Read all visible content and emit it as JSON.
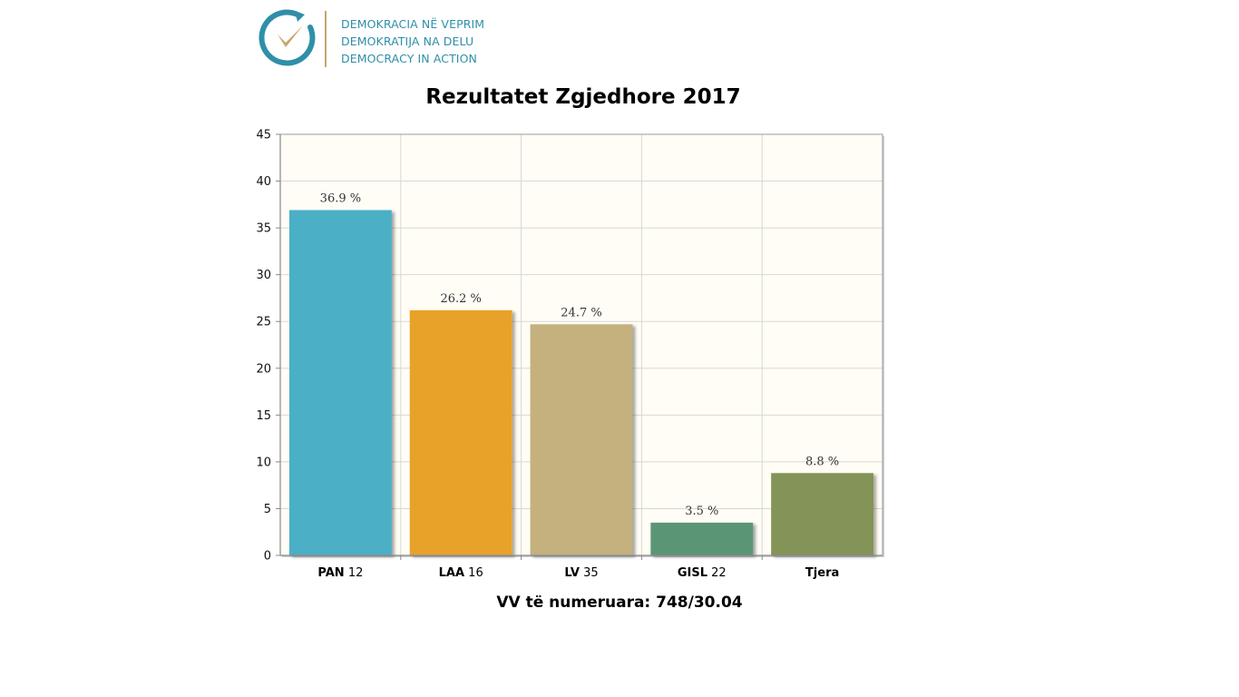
{
  "logo": {
    "lines": [
      "DEMOKRACIA NË VEPRIM",
      "DEMOKRATIJA NA DELU",
      "DEMOCRACY IN ACTION"
    ],
    "icon": "circular-arrow-checkmark-icon",
    "colors": {
      "ring": "#2f8fa8",
      "check": "#c9a46a"
    }
  },
  "chart_data": {
    "type": "bar",
    "title": "Rezultatet Zgjedhore 2017",
    "footer": "VV të numeruara: 748/30.04",
    "categories": [
      {
        "name": "PAN",
        "number": "12"
      },
      {
        "name": "LAA",
        "number": "16"
      },
      {
        "name": "LV",
        "number": "35"
      },
      {
        "name": "GISL",
        "number": "22"
      },
      {
        "name": "Tjera",
        "number": ""
      }
    ],
    "values": [
      36.9,
      26.2,
      24.7,
      3.5,
      8.8
    ],
    "value_labels": [
      "36.9 %",
      "26.2 %",
      "24.7 %",
      "3.5 %",
      "8.8 %"
    ],
    "colors": [
      "#4bafc6",
      "#e8a22b",
      "#c4b17e",
      "#5a9676",
      "#849458"
    ],
    "ylim": [
      0,
      45
    ],
    "yticks": [
      0,
      5,
      10,
      15,
      20,
      25,
      30,
      35,
      40,
      45
    ],
    "grid": true,
    "plot_background": "#fffdf6",
    "xlabel": "",
    "ylabel": ""
  }
}
